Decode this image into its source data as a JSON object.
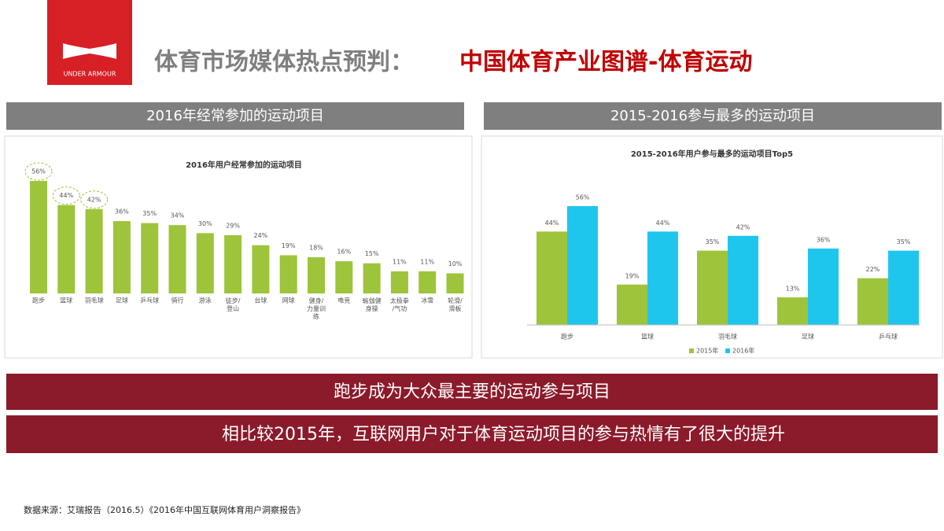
{
  "header": {
    "logo_text": "UNDER ARMOUR",
    "title_gray": "体育市场媒体热点预判：",
    "title_red": "中国体育产业图谱-体育运动"
  },
  "sections": [
    "2016年经常参加的运动项目",
    "2015-2016参与最多的运动项目"
  ],
  "banners": [
    "跑步成为大众最主要的运动参与项目",
    "相比较2015年，互联网用户对于体育运动项目的参与热情有了很大的提升"
  ],
  "source": "数据来源：艾瑞报告（2016.5）《2016年中国互联网体育用户洞察报告》",
  "chart_data": [
    {
      "type": "bar",
      "title": "2016年用户经常参加的运动项目",
      "color": "#9dc43a",
      "categories": [
        "跑步",
        "篮球",
        "羽毛球",
        "足球",
        "乒乓球",
        "骑行",
        "游泳",
        "徒步/登山",
        "台球",
        "网球",
        "健身/力量训练",
        "电竞",
        "瑜伽健身操",
        "太极拳/气功",
        "冰雪",
        "轮滑/滑板"
      ],
      "values": [
        56,
        44,
        42,
        36,
        35,
        34,
        30,
        29,
        24,
        19,
        18,
        16,
        15,
        11,
        11,
        10
      ],
      "value_labels": [
        "56%",
        "44%",
        "42%",
        "36%",
        "35%",
        "34%",
        "30%",
        "29%",
        "24%",
        "19%",
        "18%",
        "16%",
        "15%",
        "11%",
        "11%",
        "10%"
      ]
    },
    {
      "type": "grouped-bar",
      "title": "2015-2016年用户参与最多的运动项目Top5",
      "categories": [
        "跑步",
        "篮球",
        "羽毛球",
        "足球",
        "乒乓球"
      ],
      "series": [
        {
          "name": "2015年",
          "color": "#9dc43a",
          "values": [
            44,
            19,
            35,
            13,
            22
          ],
          "value_labels": [
            "44%",
            "19%",
            "35%",
            "13%",
            "22%"
          ]
        },
        {
          "name": "2016年",
          "color": "#1ec6ee",
          "values": [
            56,
            44,
            42,
            36,
            35
          ],
          "value_labels": [
            "56%",
            "44%",
            "42%",
            "36%",
            "35%"
          ]
        }
      ],
      "legend": "bottom"
    }
  ]
}
